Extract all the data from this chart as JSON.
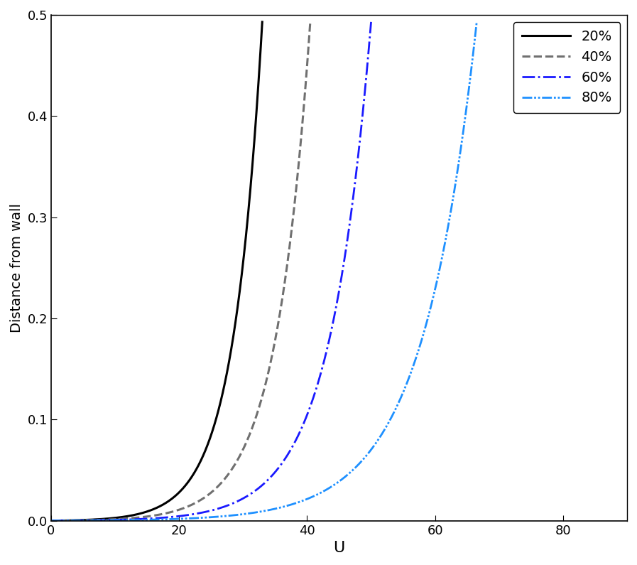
{
  "xlabel": "U",
  "ylabel": "Distance from wall",
  "xlim": [
    0,
    90
  ],
  "ylim": [
    0,
    0.5
  ],
  "xticks": [
    0,
    20,
    40,
    60,
    80
  ],
  "yticks": [
    0.0,
    0.1,
    0.2,
    0.3,
    0.4,
    0.5
  ],
  "series": [
    {
      "label": "20%",
      "color": "#000000",
      "linestyle": "solid",
      "linewidth": 2.2,
      "U_max": 33.0,
      "y_min": 0.0,
      "y_max": 0.493,
      "k": 0.22
    },
    {
      "label": "40%",
      "color": "#707070",
      "linestyle": "dashed",
      "linewidth": 2.2,
      "U_max": 40.5,
      "y_min": 0.0,
      "y_max": 0.49,
      "k": 0.185
    },
    {
      "label": "60%",
      "color": "#1a1aff",
      "linestyle": "dashdot",
      "linewidth": 2.0,
      "U_max": 50.0,
      "y_min": 0.0,
      "y_max": 0.49,
      "k": 0.155
    },
    {
      "label": "80%",
      "color": "#1E90FF",
      "linestyle": "dashdotdotted",
      "linewidth": 2.0,
      "U_max": 66.5,
      "y_min": 0.0,
      "y_max": 0.49,
      "k": 0.118
    }
  ],
  "legend_loc": "upper right",
  "background_color": "#ffffff",
  "figsize": [
    8.97,
    7.95
  ],
  "dpi": 100
}
